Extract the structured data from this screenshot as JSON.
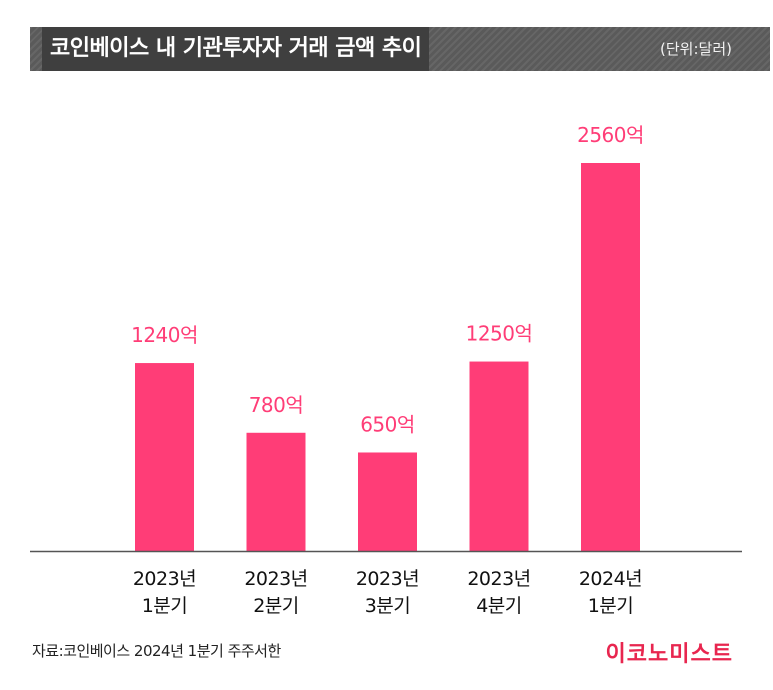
{
  "header": {
    "title": "코인베이스 내 기관투자자 거래 금액 추이",
    "unit": "(단위:달러)"
  },
  "footer": {
    "source": "자료:코인베이스 2024년 1분기 주주서한",
    "logo_text": "이코노미스트"
  },
  "colors": {
    "bar": "#ff3d77",
    "label": "#ff3d77",
    "axis": "#555555",
    "title_bg": "#3f3f3f"
  },
  "chart_data": {
    "type": "bar",
    "categories": [
      [
        "2023년",
        "1분기"
      ],
      [
        "2023년",
        "2분기"
      ],
      [
        "2023년",
        "3분기"
      ],
      [
        "2023년",
        "4분기"
      ],
      [
        "2024년",
        "1분기"
      ]
    ],
    "values": [
      1240,
      780,
      650,
      1250,
      2560
    ],
    "value_labels": [
      "1240억",
      "780억",
      "650억",
      "1250억",
      "2560억"
    ],
    "ylim": [
      0,
      2560
    ],
    "grid": false
  }
}
